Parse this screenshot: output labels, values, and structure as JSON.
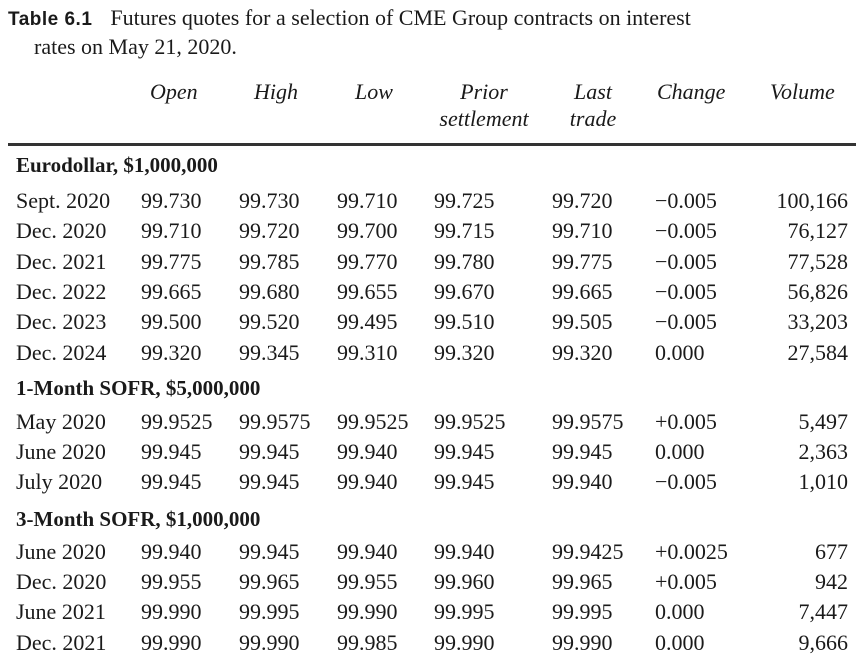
{
  "caption": {
    "label": "Table 6.1",
    "line1": "Futures quotes for a selection of CME Group contracts on interest",
    "line2": "rates on May 21, 2020."
  },
  "columns": {
    "open": "Open",
    "high": "High",
    "low": "Low",
    "prior_1": "Prior",
    "prior_2": "settlement",
    "last_1": "Last",
    "last_2": "trade",
    "change": "Change",
    "volume": "Volume"
  },
  "sections": [
    {
      "title": "Eurodollar, $1,000,000",
      "rows": [
        {
          "label": "Sept. 2020",
          "open": "99.730",
          "high": "99.730",
          "low": "99.710",
          "prior": "99.725",
          "last": "99.720",
          "change": "−0.005",
          "volume": "100,166"
        },
        {
          "label": "Dec. 2020",
          "open": "99.710",
          "high": "99.720",
          "low": "99.700",
          "prior": "99.715",
          "last": "99.710",
          "change": "−0.005",
          "volume": "76,127"
        },
        {
          "label": "Dec. 2021",
          "open": "99.775",
          "high": "99.785",
          "low": "99.770",
          "prior": "99.780",
          "last": "99.775",
          "change": "−0.005",
          "volume": "77,528"
        },
        {
          "label": "Dec. 2022",
          "open": "99.665",
          "high": "99.680",
          "low": "99.655",
          "prior": "99.670",
          "last": "99.665",
          "change": "−0.005",
          "volume": "56,826"
        },
        {
          "label": "Dec. 2023",
          "open": "99.500",
          "high": "99.520",
          "low": "99.495",
          "prior": "99.510",
          "last": "99.505",
          "change": "−0.005",
          "volume": "33,203"
        },
        {
          "label": "Dec. 2024",
          "open": "99.320",
          "high": "99.345",
          "low": "99.310",
          "prior": "99.320",
          "last": "99.320",
          "change": "0.000",
          "volume": "27,584"
        }
      ]
    },
    {
      "title": "1-Month SOFR, $5,000,000",
      "rows": [
        {
          "label": "May 2020",
          "open": "99.9525",
          "high": "99.9575",
          "low": "99.9525",
          "prior": "99.9525",
          "last": "99.9575",
          "change": "+0.005",
          "volume": "5,497"
        },
        {
          "label": "June 2020",
          "open": "99.945",
          "high": "99.945",
          "low": "99.940",
          "prior": "99.945",
          "last": "99.945",
          "change": "0.000",
          "volume": "2,363"
        },
        {
          "label": "July 2020",
          "open": "99.945",
          "high": "99.945",
          "low": "99.940",
          "prior": "99.945",
          "last": "99.940",
          "change": "−0.005",
          "volume": "1,010"
        }
      ]
    },
    {
      "title": "3-Month SOFR, $1,000,000",
      "rows": [
        {
          "label": "June 2020",
          "open": "99.940",
          "high": "99.945",
          "low": "99.940",
          "prior": "99.940",
          "last": "99.9425",
          "change": "+0.0025",
          "volume": "677"
        },
        {
          "label": "Dec. 2020",
          "open": "99.955",
          "high": "99.965",
          "low": "99.955",
          "prior": "99.960",
          "last": "99.965",
          "change": "+0.005",
          "volume": "942"
        },
        {
          "label": "June 2021",
          "open": "99.990",
          "high": "99.995",
          "low": "99.990",
          "prior": "99.995",
          "last": "99.995",
          "change": "0.000",
          "volume": "7,447"
        },
        {
          "label": "Dec. 2021",
          "open": "99.990",
          "high": "99.990",
          "low": "99.985",
          "prior": "99.990",
          "last": "99.990",
          "change": "0.000",
          "volume": "9,666"
        }
      ]
    }
  ]
}
